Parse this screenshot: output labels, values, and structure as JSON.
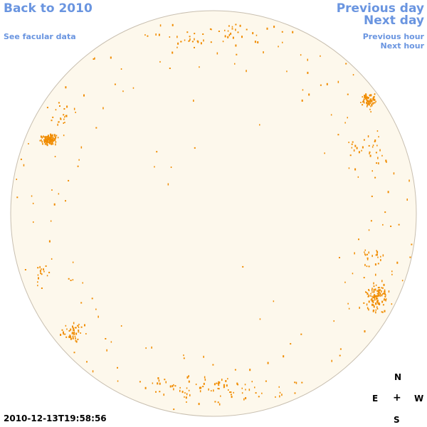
{
  "nav": {
    "back": "Back to 2010",
    "facular": "See facular data",
    "prev_day": "Previous day",
    "next_day": "Next day",
    "prev_hour": "Previous hour",
    "next_hour": "Next hour"
  },
  "timestamp": "2010-12-13T19:58:56",
  "compass": {
    "n": "N",
    "e": "E",
    "center": "+",
    "w": "W",
    "s": "S"
  },
  "colors": {
    "link": "#6a95e0",
    "disk": "#fdf8ec",
    "disk_edge": "#c8bfb0",
    "facula": "#f08c00"
  },
  "facular_clusters": [
    {
      "region": "east-north",
      "density": "high"
    },
    {
      "region": "west-north",
      "density": "high"
    },
    {
      "region": "west-south",
      "density": "high"
    },
    {
      "region": "east-south",
      "density": "medium"
    },
    {
      "region": "south-limb",
      "density": "low"
    },
    {
      "region": "north-limb",
      "density": "low"
    }
  ]
}
